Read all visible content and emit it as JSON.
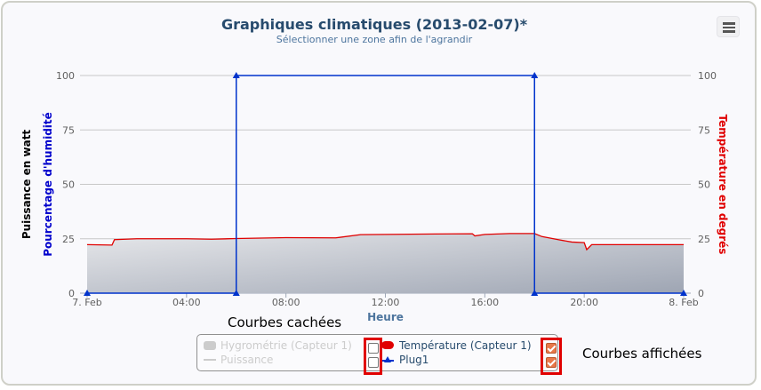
{
  "chart_data": {
    "type": "line",
    "title": "Graphiques climatiques (2013-02-07)*",
    "subtitle": "Sélectionner une zone afin de l'agrandir",
    "xlabel": "Heure",
    "x_ticks": [
      "7. Feb",
      "04:00",
      "08:00",
      "12:00",
      "16:00",
      "20:00",
      "8. Feb"
    ],
    "x_tick_hours": [
      0,
      4,
      8,
      12,
      16,
      20,
      24
    ],
    "xlim_hours": [
      0,
      24
    ],
    "ylim": [
      0,
      100
    ],
    "y_ticks": [
      0,
      25,
      50,
      75,
      100
    ],
    "y_axis_left_labels": [
      "Puissance en watt",
      "Pourcentage d'humidité"
    ],
    "y_axis_right_label": "Température en degrés",
    "grid": true,
    "series": [
      {
        "name": "Température (Capteur 1)",
        "color": "#e00000",
        "visible": true,
        "x_hours": [
          0,
          1,
          1.1,
          2,
          4,
          5,
          6,
          8,
          10,
          11,
          12,
          14,
          15.5,
          15.6,
          16,
          17,
          18,
          18.3,
          19,
          19.5,
          20,
          20.1,
          20.3,
          22,
          24
        ],
        "values": [
          22.3,
          22.1,
          24.6,
          25.0,
          25.0,
          24.8,
          25.1,
          25.5,
          25.4,
          26.9,
          27.0,
          27.2,
          27.3,
          26.3,
          27.0,
          27.4,
          27.4,
          26.0,
          24.5,
          23.5,
          23.2,
          20.0,
          22.3,
          22.3,
          22.3
        ]
      },
      {
        "name": "Plug1",
        "color": "#0033cc",
        "visible": true,
        "x_hours": [
          0,
          6,
          6,
          18,
          18,
          24
        ],
        "values": [
          0,
          0,
          100,
          100,
          0,
          0
        ]
      },
      {
        "name": "Hygrométrie (Capteur 1)",
        "visible": false
      },
      {
        "name": "Puissance",
        "visible": false
      }
    ]
  },
  "legend": {
    "hidden": [
      "Hygrométrie (Capteur 1)",
      "Puissance"
    ],
    "shown": [
      "Température (Capteur 1)",
      "Plug1"
    ]
  },
  "annotations": {
    "hidden_label": "Courbes cachées",
    "shown_label": "Courbes affichées"
  },
  "colors": {
    "title": "#274b6d",
    "annotation": "#e00000",
    "temperature": "#e00000",
    "plug": "#0033cc"
  },
  "icons": {
    "menu": "hamburger-menu-icon"
  }
}
